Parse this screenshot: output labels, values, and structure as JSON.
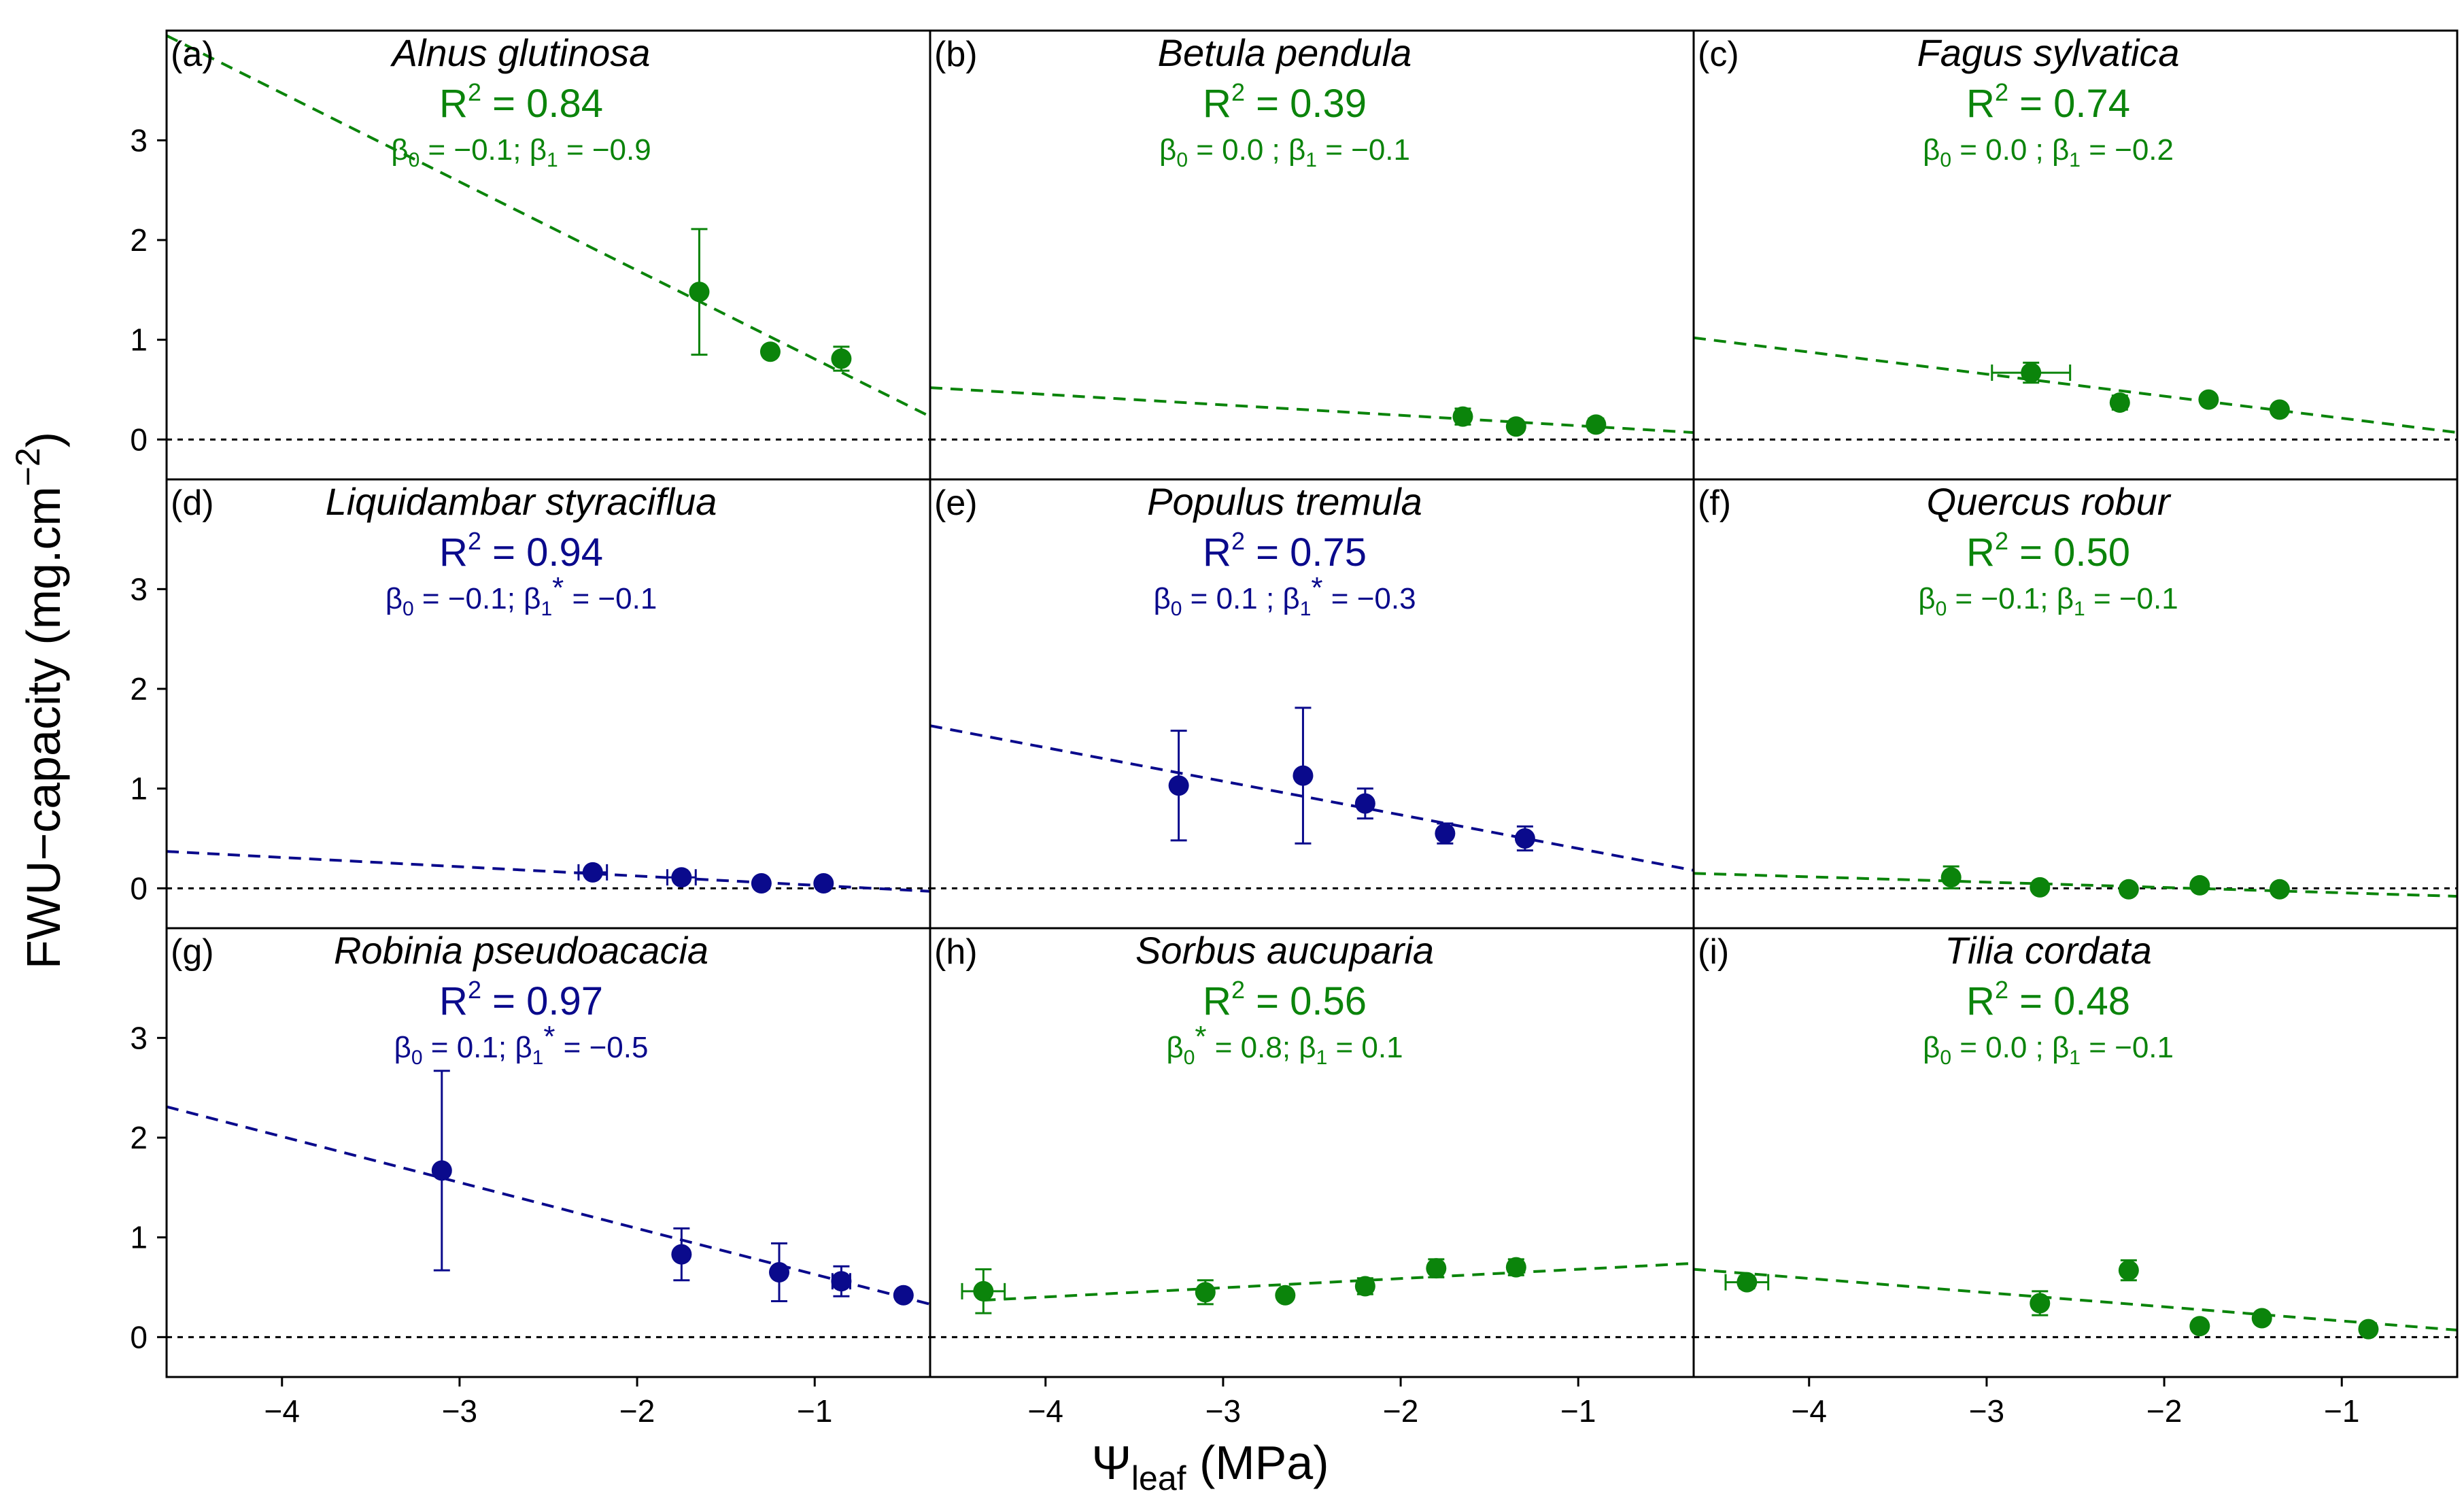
{
  "chart_data": {
    "type": "scatter",
    "layout": "3x3 small multiples",
    "xlabel": {
      "symbol": "Ψ",
      "subscript": "leaf",
      "unit": "(MPa)"
    },
    "ylabel": {
      "main": "FWU−capacity (mg.cm",
      "superscript": "−2",
      "close": ")"
    },
    "xlim": [
      -4.65,
      -0.35
    ],
    "ylim": [
      -0.4,
      4.1
    ],
    "xticks": [
      -4,
      -3,
      -2,
      -1
    ],
    "yticks": [
      0,
      1,
      2,
      3
    ],
    "xtick_labels": [
      "−4",
      "−3",
      "−2",
      "−1"
    ],
    "ytick_labels": [
      "0",
      "1",
      "2",
      "3"
    ],
    "reference_line_y": 0,
    "colors": {
      "green": "#0b840b",
      "blue": "#0a0a8c",
      "axis": "#000000"
    },
    "panels": [
      {
        "id": "a",
        "letter": "(a)",
        "species": "Alnus glutinosa",
        "r2_value": "= 0.84",
        "color": "green",
        "b0_label": "β",
        "b0_sub": "0",
        "b0_star": "",
        "b0_value": "= −0.1;",
        "b1_label": "β",
        "b1_sub": "1",
        "b1_star": "",
        "b1_value": "=   −0.9",
        "line": [
          [
            -4.65,
            4.05
          ],
          [
            -0.35,
            0.23
          ]
        ],
        "points": [
          {
            "x": -1.65,
            "y": 1.48,
            "yerr": 0.63,
            "xerr": 0
          },
          {
            "x": -1.25,
            "y": 0.88,
            "yerr": 0,
            "xerr": 0
          },
          {
            "x": -0.85,
            "y": 0.81,
            "yerr": 0.12,
            "xerr": 0
          }
        ]
      },
      {
        "id": "b",
        "letter": "(b)",
        "species": "Betula pendula",
        "r2_value": "= 0.39",
        "color": "green",
        "b0_label": "β",
        "b0_sub": "0",
        "b0_star": "",
        "b0_value": "= 0.0  ;",
        "b1_label": "β",
        "b1_sub": "1",
        "b1_star": "",
        "b1_value": "=   −0.1",
        "line": [
          [
            -4.65,
            0.52
          ],
          [
            -0.35,
            0.07
          ]
        ],
        "points": [
          {
            "x": -1.65,
            "y": 0.23,
            "yerr": 0.08,
            "xerr": 0
          },
          {
            "x": -1.35,
            "y": 0.13,
            "yerr": 0,
            "xerr": 0
          },
          {
            "x": -0.9,
            "y": 0.15,
            "yerr": 0.06,
            "xerr": 0
          }
        ]
      },
      {
        "id": "c",
        "letter": "(c)",
        "species": "Fagus sylvatica",
        "r2_value": "= 0.74",
        "color": "green",
        "b0_label": "β",
        "b0_sub": "0",
        "b0_star": "",
        "b0_value": "= 0.0  ;",
        "b1_label": "β",
        "b1_sub": "1",
        "b1_star": "",
        "b1_value": "=   −0.2",
        "line": [
          [
            -4.65,
            1.02
          ],
          [
            -0.35,
            0.07
          ]
        ],
        "points": [
          {
            "x": -2.75,
            "y": 0.67,
            "yerr": 0.1,
            "xerr": 0.22
          },
          {
            "x": -2.25,
            "y": 0.37,
            "yerr": 0.07,
            "xerr": 0
          },
          {
            "x": -1.75,
            "y": 0.4,
            "yerr": 0,
            "xerr": 0
          },
          {
            "x": -1.35,
            "y": 0.3,
            "yerr": 0,
            "xerr": 0
          }
        ]
      },
      {
        "id": "d",
        "letter": "(d)",
        "species": "Liquidambar styraciflua",
        "r2_value": "= 0.94",
        "color": "blue",
        "b0_label": "β",
        "b0_sub": "0",
        "b0_star": "",
        "b0_value": "= −0.1;",
        "b1_label": "β",
        "b1_sub": "1",
        "b1_star": "*",
        "b1_value": "= −0.1",
        "line": [
          [
            -4.65,
            0.37
          ],
          [
            -0.35,
            -0.03
          ]
        ],
        "points": [
          {
            "x": -2.25,
            "y": 0.16,
            "yerr": 0.04,
            "xerr": 0.08
          },
          {
            "x": -1.75,
            "y": 0.11,
            "yerr": 0.05,
            "xerr": 0.08
          },
          {
            "x": -1.3,
            "y": 0.05,
            "yerr": 0,
            "xerr": 0
          },
          {
            "x": -0.95,
            "y": 0.05,
            "yerr": 0,
            "xerr": 0
          }
        ]
      },
      {
        "id": "e",
        "letter": "(e)",
        "species": "Populus tremula",
        "r2_value": "= 0.75",
        "color": "blue",
        "b0_label": "β",
        "b0_sub": "0",
        "b0_star": "",
        "b0_value": "= 0.1  ;",
        "b1_label": "β",
        "b1_sub": "1",
        "b1_star": "*",
        "b1_value": "= −0.3",
        "line": [
          [
            -4.65,
            1.63
          ],
          [
            -0.35,
            0.18
          ]
        ],
        "points": [
          {
            "x": -3.25,
            "y": 1.03,
            "yerr": 0.55,
            "xerr": 0
          },
          {
            "x": -2.55,
            "y": 1.13,
            "yerr": 0.68,
            "xerr": 0
          },
          {
            "x": -2.2,
            "y": 0.85,
            "yerr": 0.15,
            "xerr": 0
          },
          {
            "x": -1.75,
            "y": 0.55,
            "yerr": 0.1,
            "xerr": 0
          },
          {
            "x": -1.3,
            "y": 0.5,
            "yerr": 0.12,
            "xerr": 0
          }
        ]
      },
      {
        "id": "f",
        "letter": "(f)",
        "species": "Quercus robur",
        "r2_value": "= 0.50",
        "color": "green",
        "b0_label": "β",
        "b0_sub": "0",
        "b0_star": "",
        "b0_value": "= −0.1;",
        "b1_label": "β",
        "b1_sub": "1",
        "b1_star": "",
        "b1_value": "=   −0.1",
        "line": [
          [
            -4.65,
            0.15
          ],
          [
            -0.35,
            -0.08
          ]
        ],
        "points": [
          {
            "x": -3.2,
            "y": 0.11,
            "yerr": 0.11,
            "xerr": 0
          },
          {
            "x": -2.7,
            "y": 0.01,
            "yerr": 0,
            "xerr": 0
          },
          {
            "x": -2.2,
            "y": -0.01,
            "yerr": 0,
            "xerr": 0
          },
          {
            "x": -1.8,
            "y": 0.03,
            "yerr": 0,
            "xerr": 0
          },
          {
            "x": -1.35,
            "y": -0.01,
            "yerr": 0,
            "xerr": 0
          }
        ]
      },
      {
        "id": "g",
        "letter": "(g)",
        "species": "Robinia pseudoacacia",
        "r2_value": "= 0.97",
        "color": "blue",
        "b0_label": "β",
        "b0_sub": "0",
        "b0_star": "",
        "b0_value": "=   0.1;",
        "b1_label": "β",
        "b1_sub": "1",
        "b1_star": "*",
        "b1_value": "= −0.5",
        "line": [
          [
            -4.65,
            2.31
          ],
          [
            -0.35,
            0.33
          ]
        ],
        "points": [
          {
            "x": -3.1,
            "y": 1.67,
            "yerr": 1.0,
            "xerr": 0
          },
          {
            "x": -1.75,
            "y": 0.83,
            "yerr": 0.26,
            "xerr": 0
          },
          {
            "x": -1.2,
            "y": 0.65,
            "yerr": 0.29,
            "xerr": 0
          },
          {
            "x": -0.85,
            "y": 0.56,
            "yerr": 0.15,
            "xerr": 0.05
          },
          {
            "x": -0.5,
            "y": 0.42,
            "yerr": 0,
            "xerr": 0
          }
        ]
      },
      {
        "id": "h",
        "letter": "(h)",
        "species": "Sorbus aucuparia",
        "r2_value": "= 0.56",
        "color": "green",
        "b0_label": "β",
        "b0_sub": "0",
        "b0_star": "*",
        "b0_value": "= 0.8;",
        "b1_label": "β",
        "b1_sub": "1",
        "b1_star": "",
        "b1_value": "=   0.1",
        "line": [
          [
            -4.35,
            0.37
          ],
          [
            -0.35,
            0.74
          ]
        ],
        "points": [
          {
            "x": -4.35,
            "y": 0.46,
            "yerr": 0.22,
            "xerr": 0.12
          },
          {
            "x": -3.1,
            "y": 0.45,
            "yerr": 0.12,
            "xerr": 0
          },
          {
            "x": -2.65,
            "y": 0.42,
            "yerr": 0,
            "xerr": 0
          },
          {
            "x": -2.2,
            "y": 0.51,
            "yerr": 0.08,
            "xerr": 0
          },
          {
            "x": -1.8,
            "y": 0.69,
            "yerr": 0.09,
            "xerr": 0
          },
          {
            "x": -1.35,
            "y": 0.7,
            "yerr": 0.08,
            "xerr": 0
          }
        ]
      },
      {
        "id": "i",
        "letter": "(i)",
        "species": "Tilia cordata",
        "r2_value": "= 0.48",
        "color": "green",
        "b0_label": "β",
        "b0_sub": "0",
        "b0_star": "",
        "b0_value": "=  0.0  ;",
        "b1_label": "β",
        "b1_sub": "1",
        "b1_star": "",
        "b1_value": "=  −0.1",
        "line": [
          [
            -4.65,
            0.68
          ],
          [
            -0.35,
            0.07
          ]
        ],
        "points": [
          {
            "x": -4.35,
            "y": 0.55,
            "yerr": 0.06,
            "xerr": 0.12
          },
          {
            "x": -2.7,
            "y": 0.34,
            "yerr": 0.12,
            "xerr": 0
          },
          {
            "x": -2.2,
            "y": 0.67,
            "yerr": 0.1,
            "xerr": 0
          },
          {
            "x": -1.8,
            "y": 0.11,
            "yerr": 0,
            "xerr": 0
          },
          {
            "x": -1.45,
            "y": 0.19,
            "yerr": 0,
            "xerr": 0
          },
          {
            "x": -0.85,
            "y": 0.08,
            "yerr": 0,
            "xerr": 0
          }
        ]
      }
    ]
  }
}
